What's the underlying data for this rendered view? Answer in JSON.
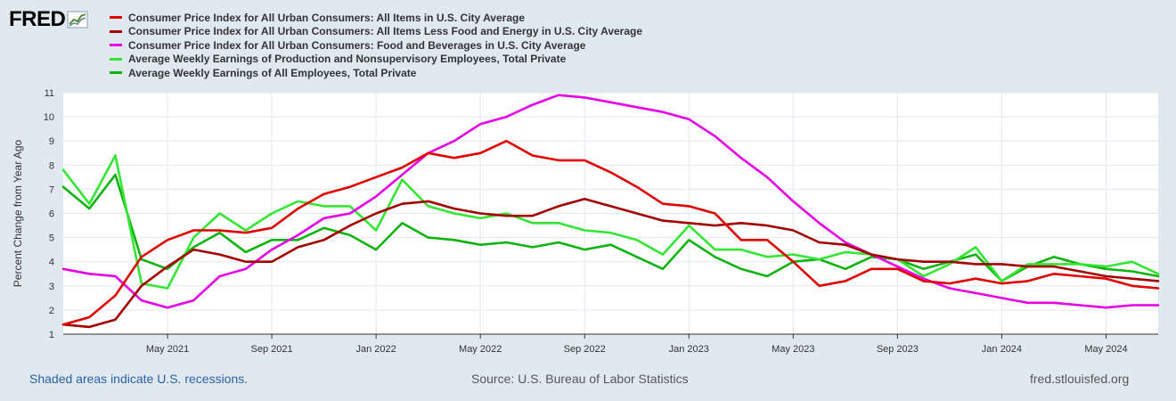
{
  "brand": {
    "logo_text": "FRED"
  },
  "footer": {
    "recessions_note": "Shaded areas indicate U.S. recessions.",
    "source": "Source: U.S. Bureau of Labor Statistics",
    "site": "fred.stlouisfed.org"
  },
  "chart_data": {
    "type": "line",
    "title": "",
    "xlabel": "",
    "ylabel": "Percent Change from Year Ago",
    "ylim": [
      1,
      11
    ],
    "yticks": [
      1,
      2,
      3,
      4,
      5,
      6,
      7,
      8,
      9,
      10,
      11
    ],
    "grid": true,
    "legend_position": "top-left",
    "x": [
      "2021-01",
      "2021-02",
      "2021-03",
      "2021-04",
      "2021-05",
      "2021-06",
      "2021-07",
      "2021-08",
      "2021-09",
      "2021-10",
      "2021-11",
      "2021-12",
      "2022-01",
      "2022-02",
      "2022-03",
      "2022-04",
      "2022-05",
      "2022-06",
      "2022-07",
      "2022-08",
      "2022-09",
      "2022-10",
      "2022-11",
      "2022-12",
      "2023-01",
      "2023-02",
      "2023-03",
      "2023-04",
      "2023-05",
      "2023-06",
      "2023-07",
      "2023-08",
      "2023-09",
      "2023-10",
      "2023-11",
      "2023-12",
      "2024-01",
      "2024-02",
      "2024-03",
      "2024-04",
      "2024-05",
      "2024-06",
      "2024-07"
    ],
    "x_tick_labels": [
      {
        "index": 4,
        "label": "May 2021"
      },
      {
        "index": 8,
        "label": "Sep 2021"
      },
      {
        "index": 12,
        "label": "Jan 2022"
      },
      {
        "index": 16,
        "label": "May 2022"
      },
      {
        "index": 20,
        "label": "Sep 2022"
      },
      {
        "index": 24,
        "label": "Jan 2023"
      },
      {
        "index": 28,
        "label": "May 2023"
      },
      {
        "index": 32,
        "label": "Sep 2023"
      },
      {
        "index": 36,
        "label": "Jan 2024"
      },
      {
        "index": 40,
        "label": "May 2024"
      }
    ],
    "series": [
      {
        "name": "Consumer Price Index for All Urban Consumers: All Items in U.S. City Average",
        "color": "#e10000",
        "values": [
          1.4,
          1.7,
          2.6,
          4.2,
          4.9,
          5.3,
          5.3,
          5.2,
          5.4,
          6.2,
          6.8,
          7.1,
          7.5,
          7.9,
          8.5,
          8.3,
          8.5,
          9.0,
          8.4,
          8.2,
          8.2,
          7.7,
          7.1,
          6.4,
          6.3,
          6.0,
          4.9,
          4.9,
          4.0,
          3.0,
          3.2,
          3.7,
          3.7,
          3.2,
          3.1,
          3.3,
          3.1,
          3.2,
          3.5,
          3.4,
          3.3,
          3.0,
          2.9
        ]
      },
      {
        "name": "Consumer Price Index for All Urban Consumers: All Items Less Food and Energy in U.S. City Average",
        "color": "#a30000",
        "values": [
          1.4,
          1.3,
          1.6,
          3.0,
          3.8,
          4.5,
          4.3,
          4.0,
          4.0,
          4.6,
          4.9,
          5.5,
          6.0,
          6.4,
          6.5,
          6.2,
          6.0,
          5.9,
          5.9,
          6.3,
          6.6,
          6.3,
          6.0,
          5.7,
          5.6,
          5.5,
          5.6,
          5.5,
          5.3,
          4.8,
          4.7,
          4.3,
          4.1,
          4.0,
          4.0,
          3.9,
          3.9,
          3.8,
          3.8,
          3.6,
          3.4,
          3.3,
          3.2
        ]
      },
      {
        "name": "Consumer Price Index for All Urban Consumers: Food and Beverages in U.S. City Average",
        "color": "#e600e6",
        "values": [
          3.7,
          3.5,
          3.4,
          2.4,
          2.1,
          2.4,
          3.4,
          3.7,
          4.5,
          5.1,
          5.8,
          6.0,
          6.7,
          7.6,
          8.5,
          9.0,
          9.7,
          10.0,
          10.5,
          10.9,
          10.8,
          10.6,
          10.4,
          10.2,
          9.9,
          9.2,
          8.3,
          7.5,
          6.5,
          5.6,
          4.8,
          4.3,
          3.8,
          3.3,
          2.9,
          2.7,
          2.5,
          2.3,
          2.3,
          2.2,
          2.1,
          2.2,
          2.2
        ]
      },
      {
        "name": "Average Weekly Earnings of Production and Nonsupervisory Employees, Total Private",
        "color": "#33e633",
        "values": [
          7.8,
          6.4,
          8.4,
          3.1,
          2.9,
          5.0,
          6.0,
          5.3,
          6.0,
          6.5,
          6.3,
          6.3,
          5.3,
          7.4,
          6.3,
          6.0,
          5.8,
          6.0,
          5.6,
          5.6,
          5.3,
          5.2,
          4.9,
          4.3,
          5.5,
          4.5,
          4.5,
          4.2,
          4.3,
          4.1,
          4.4,
          4.3,
          4.1,
          3.4,
          3.9,
          4.6,
          3.2,
          3.9,
          3.9,
          3.9,
          3.8,
          4.0,
          3.5
        ]
      },
      {
        "name": "Average Weekly Earnings of All Employees, Total Private",
        "color": "#0fb30f",
        "values": [
          7.1,
          6.2,
          7.6,
          4.1,
          3.7,
          4.6,
          5.2,
          4.4,
          4.9,
          4.9,
          5.4,
          5.1,
          4.5,
          5.6,
          5.0,
          4.9,
          4.7,
          4.8,
          4.6,
          4.8,
          4.5,
          4.7,
          4.2,
          3.7,
          4.9,
          4.2,
          3.7,
          3.4,
          4.0,
          4.1,
          3.7,
          4.2,
          4.1,
          3.7,
          4.0,
          4.3,
          3.2,
          3.8,
          4.2,
          3.9,
          3.7,
          3.6,
          3.4
        ]
      }
    ]
  }
}
